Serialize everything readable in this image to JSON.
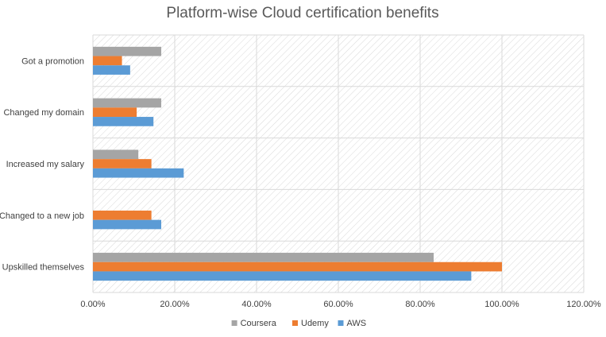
{
  "chart_data": {
    "type": "bar",
    "orientation": "horizontal",
    "title": "Platform-wise Cloud certification benefits",
    "categories": [
      "Got a promotion",
      "Changed my domain",
      "Increased my salary",
      "Changed to a new job",
      "Upskilled themselves"
    ],
    "series": [
      {
        "name": "Coursera",
        "color": "#a5a5a5",
        "values": [
          16.7,
          16.7,
          11.1,
          0,
          83.3
        ]
      },
      {
        "name": "Udemy",
        "color": "#ed7d31",
        "values": [
          7.1,
          10.7,
          14.3,
          14.3,
          100.0
        ]
      },
      {
        "name": "AWS",
        "color": "#5b9bd5",
        "values": [
          9.1,
          14.8,
          22.2,
          16.7,
          92.5
        ]
      }
    ],
    "xlim": [
      0,
      120
    ],
    "xticks": [
      "0.00%",
      "20.00%",
      "40.00%",
      "60.00%",
      "80.00%",
      "100.00%",
      "120.00%"
    ],
    "legend_position": "bottom",
    "grid": true,
    "background": "diagonal-hatch"
  }
}
